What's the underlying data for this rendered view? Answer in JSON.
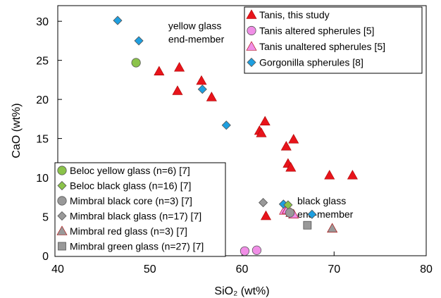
{
  "chart_data": {
    "type": "scatter",
    "xlabel": "SiO₂ (wt%)",
    "ylabel": "CaO (wt%)",
    "xlim": [
      40,
      80
    ],
    "ylim": [
      0,
      32
    ],
    "xticks": [
      40,
      50,
      60,
      70,
      80
    ],
    "yticks": [
      0,
      5,
      10,
      15,
      20,
      25,
      30
    ],
    "grid": false,
    "legends": [
      {
        "placement": "top-right",
        "entries": [
          "Tanis, this study",
          "Tanis altered spherules [5]",
          "Tanis unaltered spherules [5]",
          "Gorgonilla spherules [8]"
        ]
      },
      {
        "placement": "bottom-left",
        "entries": [
          "Beloc yellow glass (n=6) [7]",
          "Beloc black glass (n=16) [7]",
          "Mimbral black core (n=3) [7]",
          "Mimbral black glass (n=17) [7]",
          "Mimbral red glass (n=3) [7]",
          "Mimbral green glass (n=27) [7]"
        ]
      }
    ],
    "annotations": [
      {
        "lines": [
          "yellow glass",
          "end-member"
        ],
        "x": 52.0,
        "y": 29.0
      },
      {
        "lines": [
          "black glass",
          "end-member"
        ],
        "x": 66.0,
        "y": 6.6
      }
    ],
    "series": [
      {
        "name": "Tanis, this study",
        "marker": "triangle",
        "color": "#e8141b",
        "points": [
          [
            51.0,
            23.6
          ],
          [
            53.2,
            24.1
          ],
          [
            53.0,
            21.1
          ],
          [
            55.6,
            22.4
          ],
          [
            56.7,
            20.3
          ],
          [
            61.9,
            16.0
          ],
          [
            62.1,
            15.7
          ],
          [
            62.5,
            17.2
          ],
          [
            64.8,
            14.0
          ],
          [
            65.6,
            14.9
          ],
          [
            65.0,
            11.8
          ],
          [
            65.3,
            11.3
          ],
          [
            69.5,
            10.3
          ],
          [
            72.0,
            10.3
          ],
          [
            62.6,
            5.1
          ]
        ]
      },
      {
        "name": "Tanis altered spherules [5]",
        "marker": "circle",
        "color": "#f08ee6",
        "points": [
          [
            60.3,
            0.6
          ],
          [
            61.6,
            0.7
          ]
        ]
      },
      {
        "name": "Tanis unaltered spherules [5]",
        "marker": "triangle",
        "color": "#f08ee6",
        "points": [
          [
            64.6,
            5.8
          ],
          [
            64.9,
            5.9
          ],
          [
            65.3,
            5.5
          ],
          [
            65.6,
            5.3
          ]
        ]
      },
      {
        "name": "Gorgonilla spherules [8]",
        "marker": "diamond",
        "color": "#1e9fe0",
        "points": [
          [
            46.5,
            30.1
          ],
          [
            48.8,
            27.5
          ],
          [
            55.7,
            21.3
          ],
          [
            58.3,
            16.7
          ],
          [
            64.5,
            6.6
          ],
          [
            67.6,
            5.3
          ]
        ]
      },
      {
        "name": "Beloc yellow glass (n=6) [7]",
        "marker": "circle",
        "color": "#8bc34a",
        "points": [
          [
            48.5,
            24.7
          ]
        ]
      },
      {
        "name": "Beloc black glass (n=16) [7]",
        "marker": "diamond",
        "color": "#8bc34a",
        "points": [
          [
            65.0,
            6.5
          ]
        ]
      },
      {
        "name": "Mimbral black core (n=3) [7]",
        "marker": "circle",
        "color": "#999999",
        "points": [
          [
            65.2,
            5.5
          ]
        ]
      },
      {
        "name": "Mimbral black glass (n=17) [7]",
        "marker": "diamond",
        "color": "#999999",
        "points": [
          [
            62.3,
            6.8
          ]
        ]
      },
      {
        "name": "Mimbral red glass (n=3) [7]",
        "marker": "triangle",
        "color": "#999999",
        "points": [
          [
            69.8,
            3.5
          ]
        ]
      },
      {
        "name": "Mimbral green glass (n=27) [7]",
        "marker": "square",
        "color": "#999999",
        "points": [
          [
            67.1,
            3.9
          ]
        ]
      }
    ]
  }
}
